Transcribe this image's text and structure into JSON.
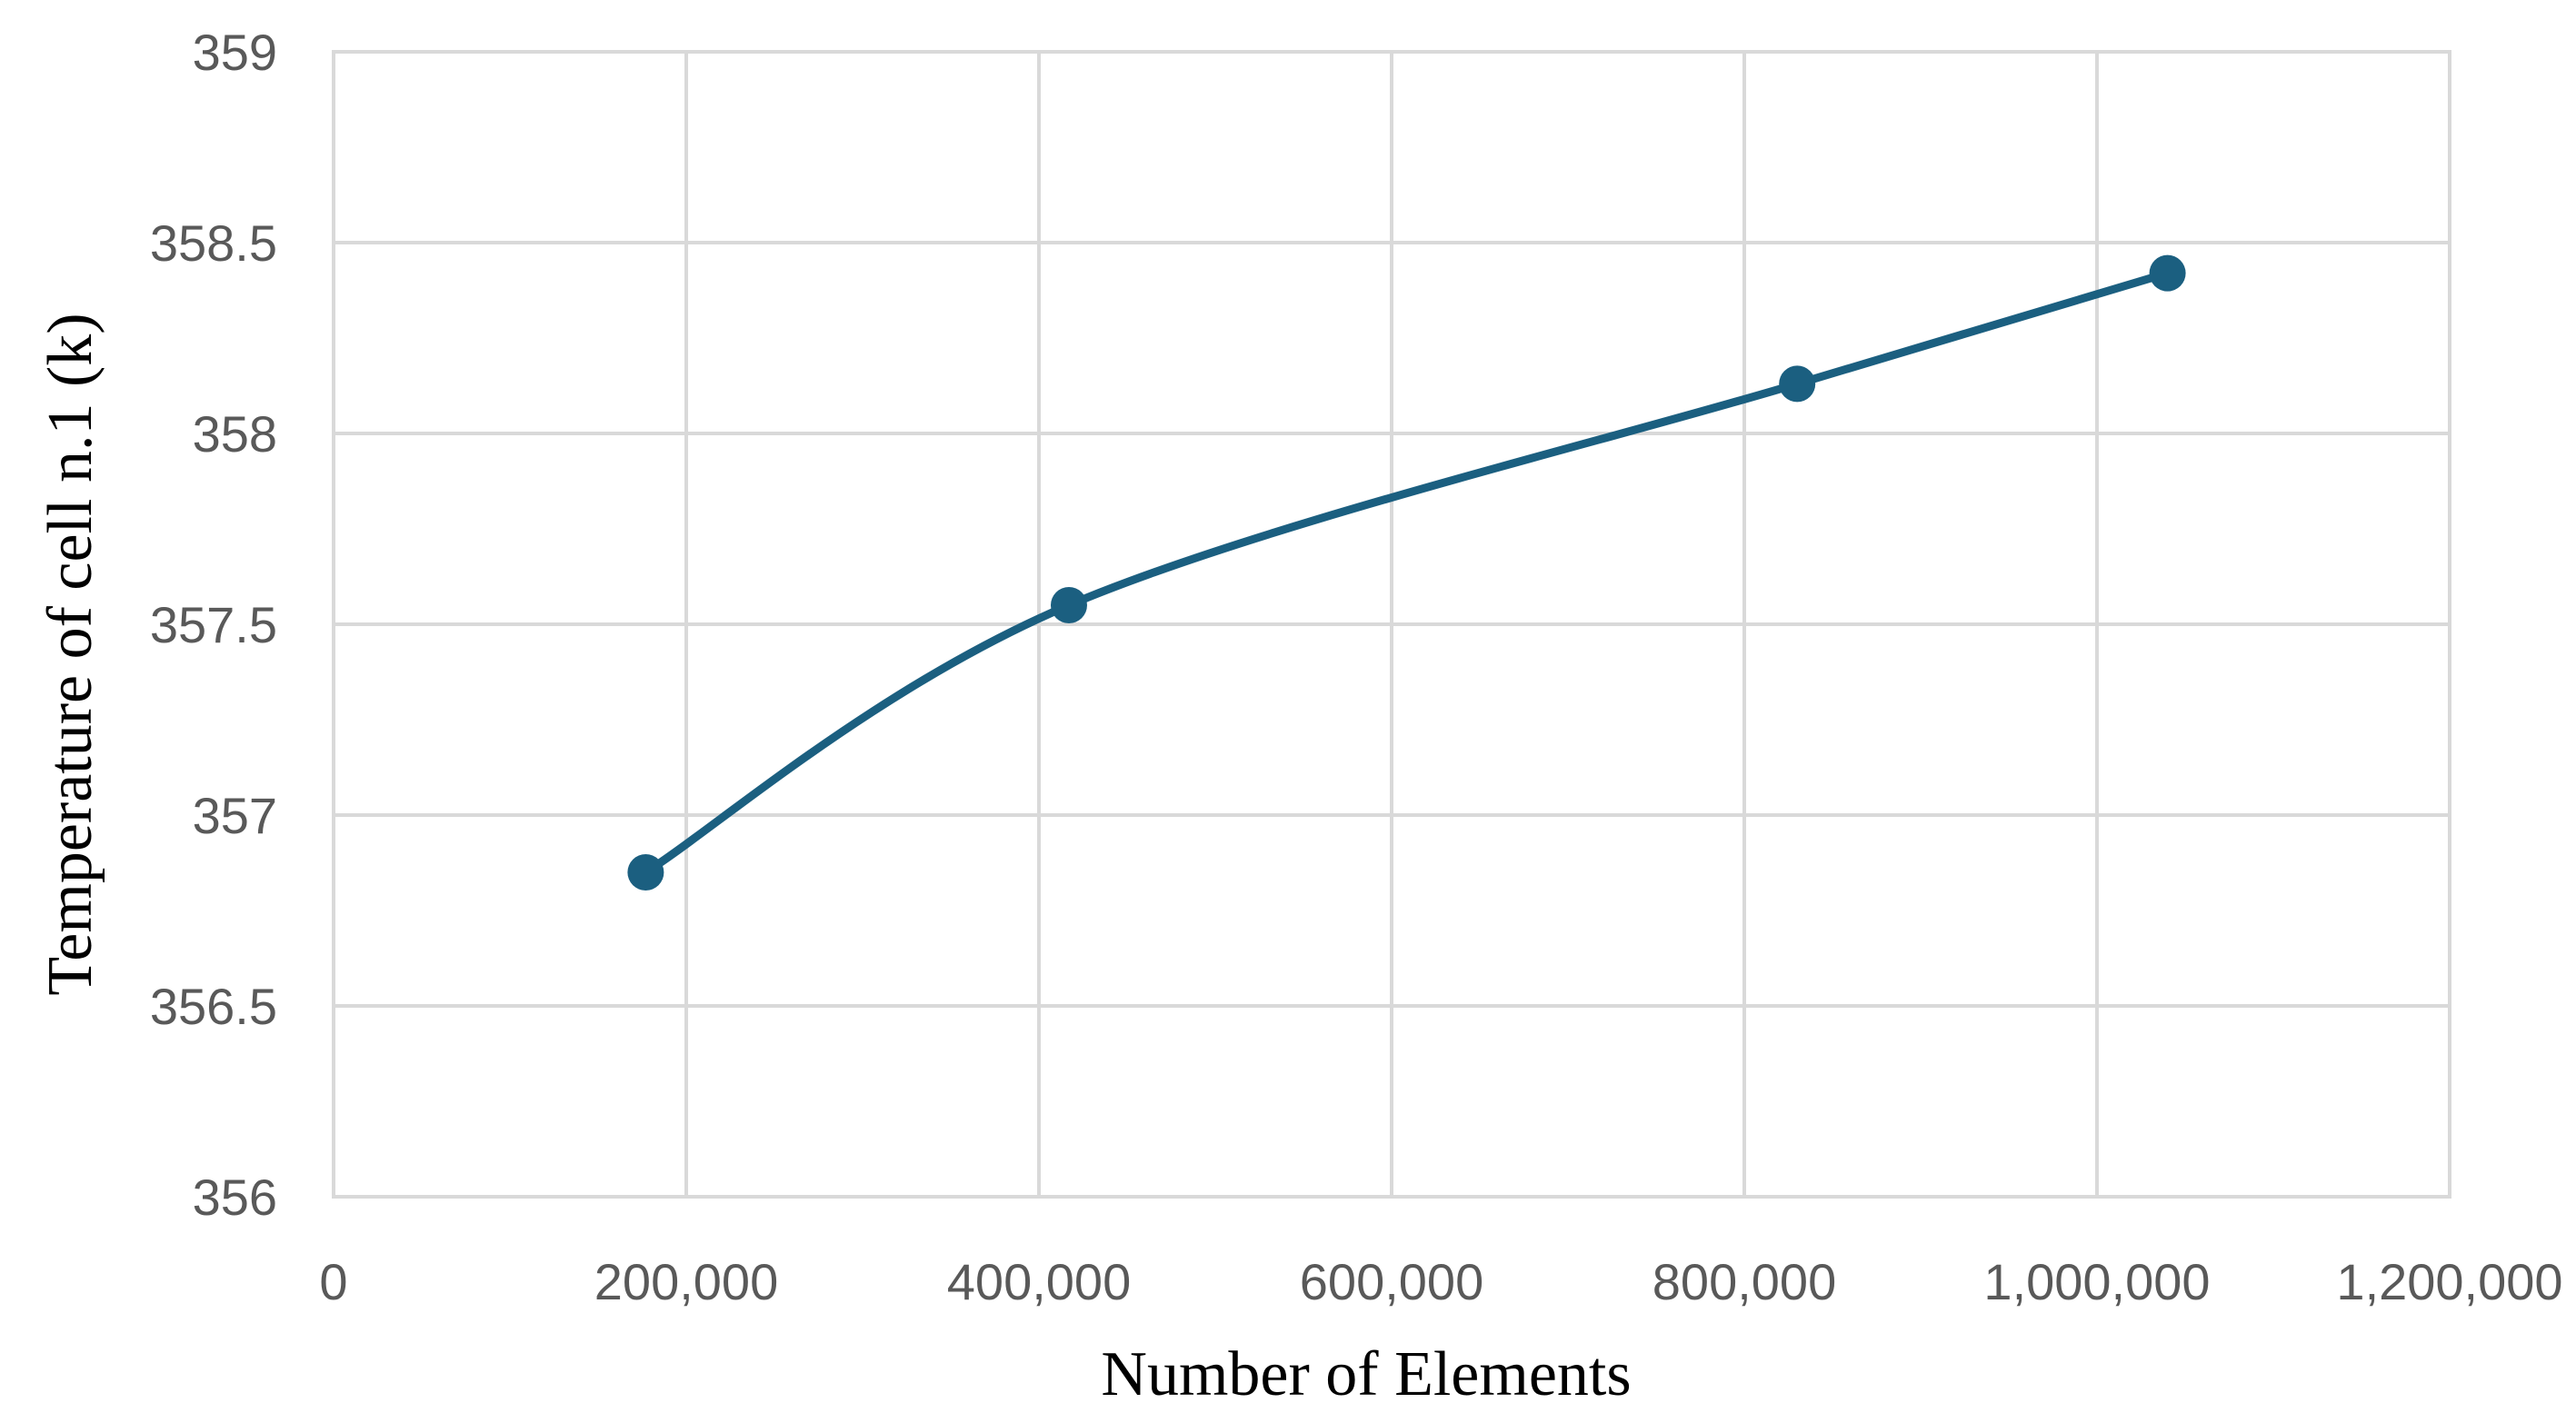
{
  "chart_data": {
    "type": "scatter",
    "title": "",
    "xlabel": "Number of Elements",
    "ylabel": "Temperature of cell n.1 (k)",
    "xlim": [
      0,
      1200000
    ],
    "ylim": [
      356,
      359
    ],
    "x_ticks": [
      0,
      200000,
      400000,
      600000,
      800000,
      1000000,
      1200000
    ],
    "x_tick_labels": [
      "0",
      "200,000",
      "400,000",
      "600,000",
      "800,000",
      "1,000,000",
      "1,200,000"
    ],
    "y_ticks": [
      356,
      356.5,
      357,
      357.5,
      358,
      358.5,
      359
    ],
    "y_tick_labels": [
      "356",
      "356.5",
      "357",
      "357.5",
      "358",
      "358.5",
      "359"
    ],
    "grid": true,
    "legend": "none",
    "smooth_line": true,
    "markers": true,
    "series": [
      {
        "color": "#1b5f80",
        "points": [
          {
            "x": 177000,
            "y": 356.85
          },
          {
            "x": 417000,
            "y": 357.55
          },
          {
            "x": 830000,
            "y": 358.13
          },
          {
            "x": 1040000,
            "y": 358.42
          }
        ]
      }
    ]
  }
}
